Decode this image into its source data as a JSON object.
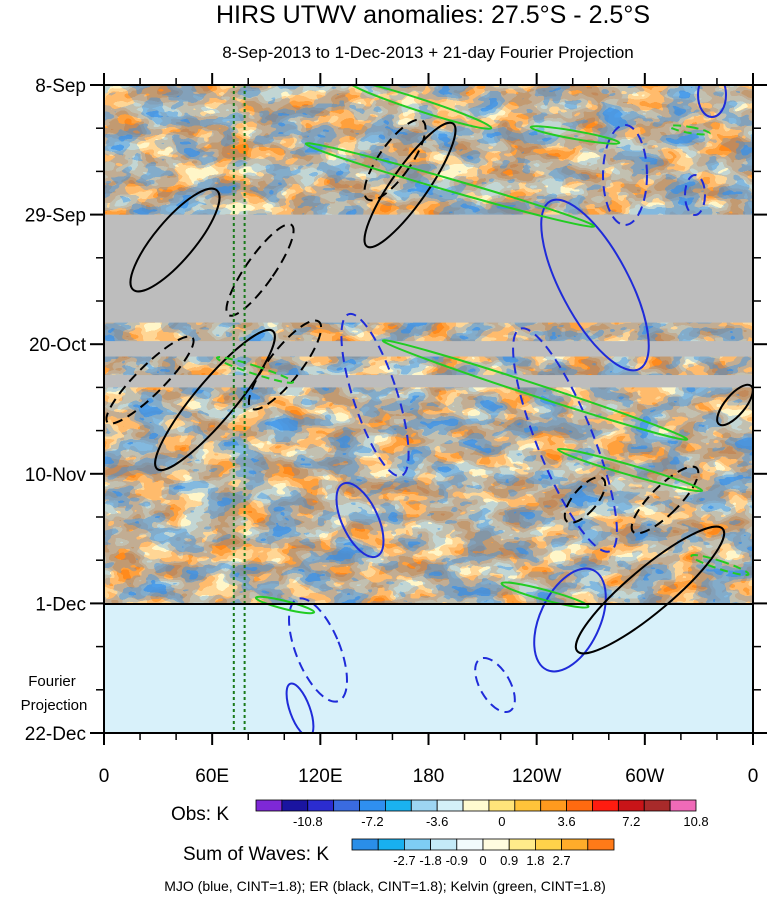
{
  "chart_data": {
    "type": "heatmap",
    "title": "HIRS UTWV anomalies: 27.5°S - 2.5°S",
    "subtitle": "8-Sep-2013 to 1-Dec-2013 + 21-day Fourier Projection",
    "x_ticks": [
      "0",
      "60E",
      "120E",
      "180",
      "120W",
      "60W",
      "0"
    ],
    "x_range": [
      0,
      360
    ],
    "y_ticks": [
      "8-Sep",
      "29-Sep",
      "20-Oct",
      "10-Nov",
      "1-Dec",
      "22-Dec"
    ],
    "y_range_days": [
      0,
      105
    ],
    "projection_label": [
      "Fourier",
      "Projection"
    ],
    "projection_start_day": 84,
    "missing_data_bands_days": [
      [
        21.0,
        38.5
      ],
      [
        41.5,
        44.0
      ],
      [
        47.0,
        49.0
      ]
    ],
    "dotted_reference_lines_lon": [
      72,
      78
    ],
    "obs_colorbar": {
      "label": "Obs: K",
      "tick_labels": [
        "-10.8",
        "-7.2",
        "-3.6",
        "0",
        "3.6",
        "7.2",
        "10.8"
      ],
      "colors": [
        "#7e28d6",
        "#1a14a0",
        "#2b2cd0",
        "#3a6be0",
        "#2f8ff0",
        "#1ab2f0",
        "#9dd5f2",
        "#d4f1f8",
        "#fffbd0",
        "#ffe47a",
        "#ffc33a",
        "#ff9a1e",
        "#ff6a10",
        "#ff1c10",
        "#c81418",
        "#a82a2a",
        "#f06ab8"
      ]
    },
    "waves_colorbar": {
      "label": "Sum of Waves: K",
      "tick_labels": [
        "-2.7",
        "-1.8",
        "-0.9",
        "0",
        "0.9",
        "1.8",
        "2.7"
      ],
      "colors": [
        "#2a8ee8",
        "#18b0f0",
        "#7ecdf4",
        "#c4eaf8",
        "#f2fbfd",
        "#fffce0",
        "#ffec8a",
        "#ffd24a",
        "#ffac2a",
        "#ff7a18"
      ]
    },
    "contour_legend": "MJO (blue, CINT=1.8); ER (black, CINT=1.8); Kelvin (green, CINT=1.8)",
    "series": [
      {
        "name": "MJO",
        "color": "#1f2bd9",
        "cint": 1.8
      },
      {
        "name": "ER",
        "color": "#000000",
        "cint": 1.8
      },
      {
        "name": "Kelvin",
        "color": "#22cc22",
        "cint": 1.8
      }
    ]
  }
}
